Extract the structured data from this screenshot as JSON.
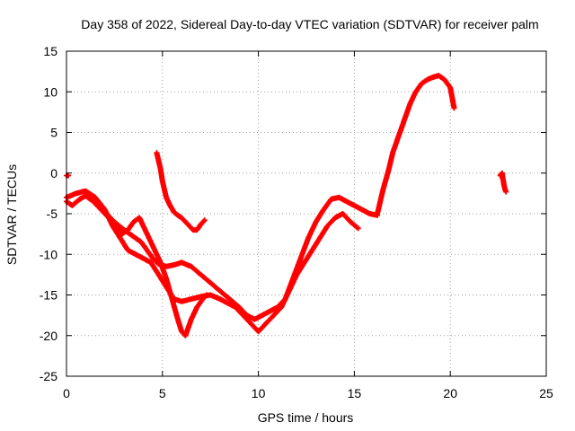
{
  "chart_data": {
    "type": "scatter",
    "title": "Day 358 of 2022, Sidereal Day-to-day VTEC variation (SDTVAR) for receiver palm",
    "xlabel": "GPS time / hours",
    "ylabel": "SDTVAR / TECUs",
    "xlim": [
      0,
      25
    ],
    "ylim": [
      -25,
      15
    ],
    "xticks": [
      "0",
      "5",
      "10",
      "15",
      "20",
      "25"
    ],
    "yticks": [
      "15",
      "10",
      "5",
      "0",
      "-5",
      "-10",
      "-15",
      "-20",
      "-25"
    ],
    "grid": true,
    "marker": "+",
    "series_color": "#ff0000",
    "series": [
      {
        "name": "segment-a",
        "x": [
          0.0,
          0.3,
          0.7,
          1.0,
          1.4,
          1.8,
          2.2,
          2.5,
          2.9,
          3.3,
          3.6,
          3.9,
          4.2,
          4.5,
          4.8,
          5.2,
          5.6,
          6.0,
          6.5,
          7.0,
          7.5,
          8.0,
          8.5,
          9.0,
          9.4,
          9.8,
          10.2,
          10.6,
          11.0,
          11.4,
          11.8,
          12.2,
          12.6,
          13.0,
          13.4,
          13.8,
          14.2,
          14.6,
          15.0,
          15.4,
          15.8,
          16.2
        ],
        "y": [
          -3.5,
          -4.0,
          -3.2,
          -2.8,
          -3.5,
          -4.5,
          -5.5,
          -6.0,
          -6.8,
          -7.5,
          -8.0,
          -8.5,
          -9.5,
          -10.5,
          -11.2,
          -11.5,
          -11.3,
          -11.0,
          -11.5,
          -12.5,
          -13.5,
          -14.5,
          -15.5,
          -16.5,
          -17.5,
          -18.0,
          -17.5,
          -17.0,
          -16.5,
          -15.5,
          -13.0,
          -10.5,
          -8.0,
          -6.0,
          -4.5,
          -3.2,
          -3.0,
          -3.5,
          -4.0,
          -4.5,
          -5.0,
          -5.2
        ]
      },
      {
        "name": "segment-b",
        "x": [
          0.0,
          0.5,
          1.0,
          1.5,
          2.0,
          2.4,
          2.8,
          3.2,
          3.6,
          4.0,
          4.4,
          4.8,
          5.2,
          5.6,
          6.0,
          6.5,
          7.0,
          7.5,
          8.0,
          8.4,
          8.8,
          9.2,
          9.6,
          10.0,
          10.4,
          10.8,
          11.2,
          11.6,
          12.0,
          12.4,
          12.8,
          13.2,
          13.6,
          14.0,
          14.4,
          14.8,
          15.2
        ],
        "y": [
          -3.0,
          -2.5,
          -2.2,
          -3.0,
          -4.5,
          -6.5,
          -8.0,
          -9.5,
          -10.0,
          -10.5,
          -11.0,
          -12.5,
          -14.0,
          -15.5,
          -15.8,
          -15.5,
          -15.2,
          -15.0,
          -15.5,
          -16.0,
          -16.5,
          -17.5,
          -18.5,
          -19.5,
          -18.5,
          -17.5,
          -16.5,
          -14.5,
          -12.5,
          -11.0,
          -9.5,
          -8.0,
          -6.5,
          -5.5,
          -5.0,
          -6.0,
          -6.8
        ]
      },
      {
        "name": "segment-c",
        "x": [
          2.0,
          2.3,
          2.6,
          2.9,
          3.2,
          3.5,
          3.8,
          4.0,
          4.3,
          4.6,
          4.9,
          5.2,
          5.5,
          5.8,
          6.0,
          6.2,
          6.5,
          6.8,
          7.1,
          7.3
        ],
        "y": [
          -5.0,
          -5.5,
          -6.5,
          -7.5,
          -7.0,
          -6.0,
          -5.5,
          -6.5,
          -8.0,
          -9.5,
          -11.0,
          -13.0,
          -15.5,
          -18.0,
          -19.5,
          -20.0,
          -18.0,
          -16.5,
          -15.5,
          -15.0
        ]
      },
      {
        "name": "segment-d",
        "x": [
          4.7,
          4.8,
          4.9,
          5.0,
          5.1,
          5.2,
          5.4,
          5.6,
          5.8,
          6.0,
          6.2,
          6.4,
          6.6,
          6.8,
          7.0,
          7.2
        ],
        "y": [
          2.5,
          1.5,
          0.5,
          -1.0,
          -2.0,
          -3.0,
          -4.0,
          -4.8,
          -5.2,
          -5.5,
          -6.0,
          -6.5,
          -7.0,
          -7.0,
          -6.3,
          -5.8
        ]
      },
      {
        "name": "segment-e",
        "x": [
          16.2,
          16.5,
          16.8,
          17.0,
          17.3,
          17.6,
          17.9,
          18.2,
          18.5,
          18.8,
          19.1,
          19.4,
          19.7,
          20.0,
          20.2
        ],
        "y": [
          -5.0,
          -2.0,
          0.5,
          2.5,
          4.5,
          6.5,
          8.5,
          10.0,
          11.0,
          11.5,
          11.8,
          12.0,
          11.5,
          10.5,
          8.0
        ]
      },
      {
        "name": "segment-f",
        "x": [
          22.6,
          22.7,
          22.75,
          22.8,
          22.85,
          22.9
        ],
        "y": [
          -0.3,
          0.0,
          -0.8,
          -1.5,
          -2.0,
          -2.3
        ]
      },
      {
        "name": "segment-g",
        "x": [
          0.0,
          0.1
        ],
        "y": [
          -0.3,
          -0.3
        ]
      }
    ]
  }
}
